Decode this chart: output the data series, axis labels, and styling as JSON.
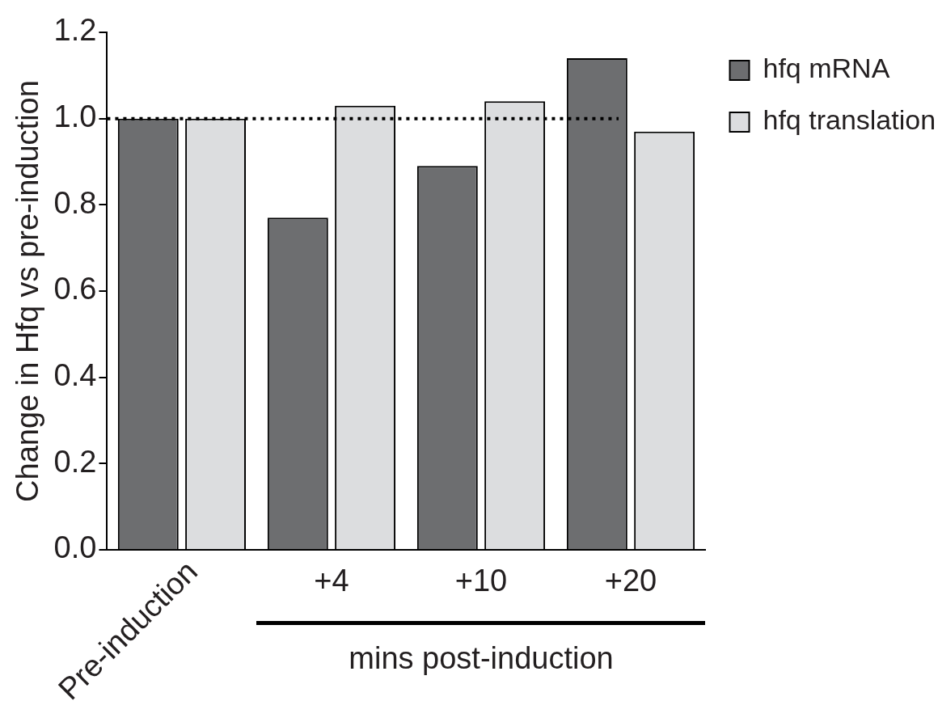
{
  "chart_data": {
    "type": "bar",
    "ylabel": "Change in Hfq vs pre-induction",
    "categories": [
      "Pre-induction",
      "+4",
      "+10",
      "+20"
    ],
    "series": [
      {
        "name": "hfq mRNA",
        "color": "#6d6e70",
        "values": [
          1.0,
          0.77,
          0.89,
          1.14
        ]
      },
      {
        "name": "hfq translation",
        "color": "#dcdddf",
        "values": [
          1.0,
          1.03,
          1.04,
          0.97
        ]
      }
    ],
    "ylim": [
      0,
      1.2
    ],
    "yticks": [
      {
        "value": 0,
        "label": "0.0"
      },
      {
        "value": 0.2,
        "label": "0.2"
      },
      {
        "value": 0.4,
        "label": "0.4"
      },
      {
        "value": 0.6,
        "label": "0.6"
      },
      {
        "value": 0.8,
        "label": "0.8"
      },
      {
        "value": 1.0,
        "label": "1.0"
      },
      {
        "value": 1.2,
        "label": "1.2"
      }
    ],
    "ref_lines": [
      {
        "axis": "y",
        "value": 1.0,
        "color": "#000000",
        "line_style": "dotted"
      }
    ],
    "annotations": [
      {
        "text": "mins post-induction"
      }
    ],
    "grid": false,
    "legend": "top right"
  }
}
